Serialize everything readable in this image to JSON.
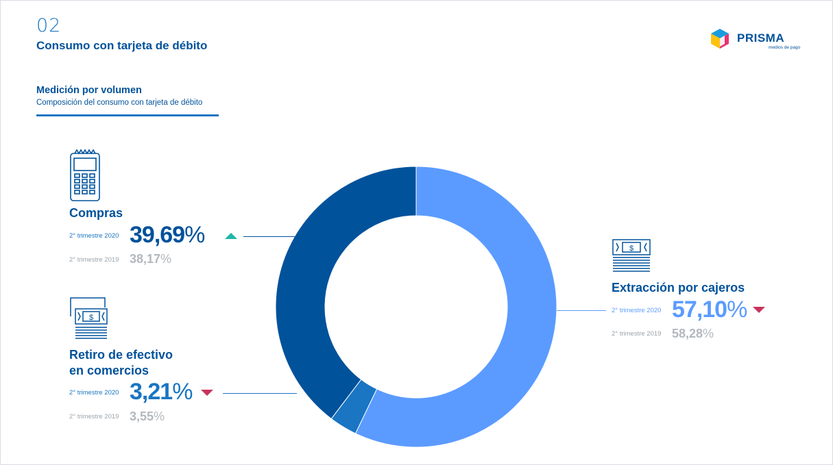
{
  "header": {
    "section_number": "02",
    "title": "Consumo con tarjeta de débito",
    "subtitle": "Medición por volumen",
    "description": "Composición del consumo con tarjeta de débito"
  },
  "logo": {
    "name": "PRISMA",
    "tagline": "medios de pago"
  },
  "colors": {
    "compras": "#00529b",
    "retiro": "#1a75c2",
    "extraccion": "#5b9bff",
    "trend_up": "#1fb6a8",
    "trend_down": "#c8335d"
  },
  "categories": [
    {
      "key": "compras",
      "title_lines": [
        "Compras"
      ],
      "icon": "pos-terminal-icon",
      "current_period": "2° trimestre 2020",
      "current_value": "39,69",
      "previous_period": "2° trimestre 2019",
      "previous_value": "38,17",
      "unit": "%",
      "trend": "up"
    },
    {
      "key": "retiro",
      "title_lines": [
        "Retiro de efectivo",
        "en comercios"
      ],
      "icon": "cash-bills-icon",
      "current_period": "2° trimestre 2020",
      "current_value": "3,21",
      "previous_period": "2° trimestre 2019",
      "previous_value": "3,55",
      "unit": "%",
      "trend": "down"
    },
    {
      "key": "extraccion",
      "title_lines": [
        "Extracción por cajeros"
      ],
      "icon": "cash-stack-icon",
      "current_period": "2° trimestre 2020",
      "current_value": "57,10",
      "previous_period": "2° trimestre 2019",
      "previous_value": "58,28",
      "unit": "%",
      "trend": "down"
    }
  ],
  "chart_data": {
    "type": "pie",
    "donut": true,
    "start": "top",
    "direction": "clockwise",
    "labels": [
      "Extracción por cajeros",
      "Retiro de efectivo en comercios",
      "Compras"
    ],
    "values": [
      57.1,
      3.21,
      39.69
    ],
    "colors": [
      "#5b9bff",
      "#1a75c2",
      "#00529b"
    ]
  }
}
